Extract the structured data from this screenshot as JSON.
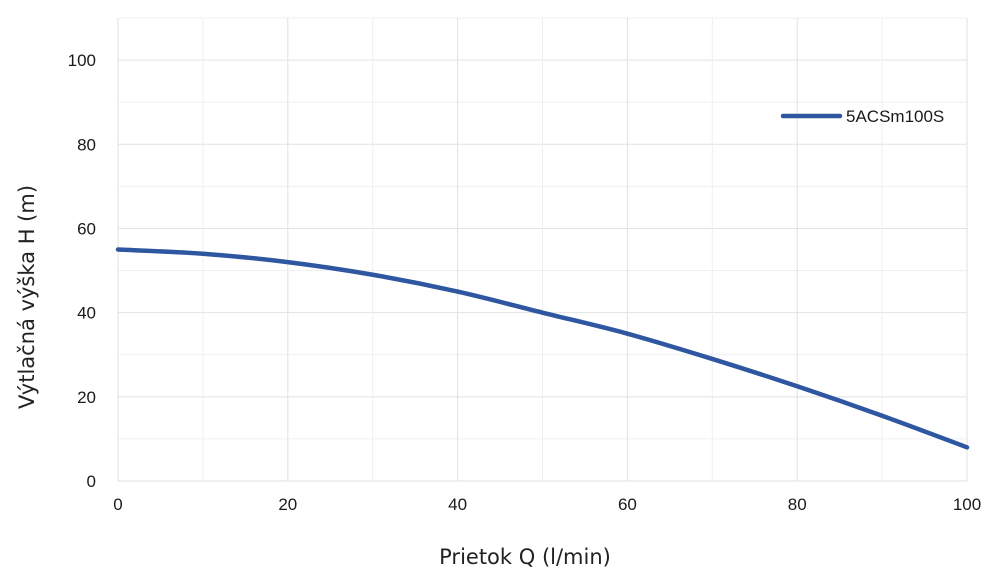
{
  "chart_data": {
    "type": "line",
    "title": "",
    "xlabel": "Prietok Q (l/min)",
    "ylabel": "Výtlačná výška H (m)",
    "xlim": [
      0,
      100
    ],
    "ylim": [
      0,
      110
    ],
    "xticks": [
      0,
      20,
      40,
      60,
      80,
      100
    ],
    "yticks": [
      0,
      20,
      40,
      60,
      80,
      100
    ],
    "grid": true,
    "legend_position": "top-right",
    "series": [
      {
        "name": "5ACSm100S",
        "color": "#2f56a0",
        "x": [
          0,
          10,
          20,
          30,
          40,
          50,
          60,
          70,
          80,
          90,
          100
        ],
        "y": [
          55,
          54,
          52,
          49,
          45,
          40,
          35,
          29,
          22.5,
          15.5,
          8
        ]
      }
    ]
  }
}
